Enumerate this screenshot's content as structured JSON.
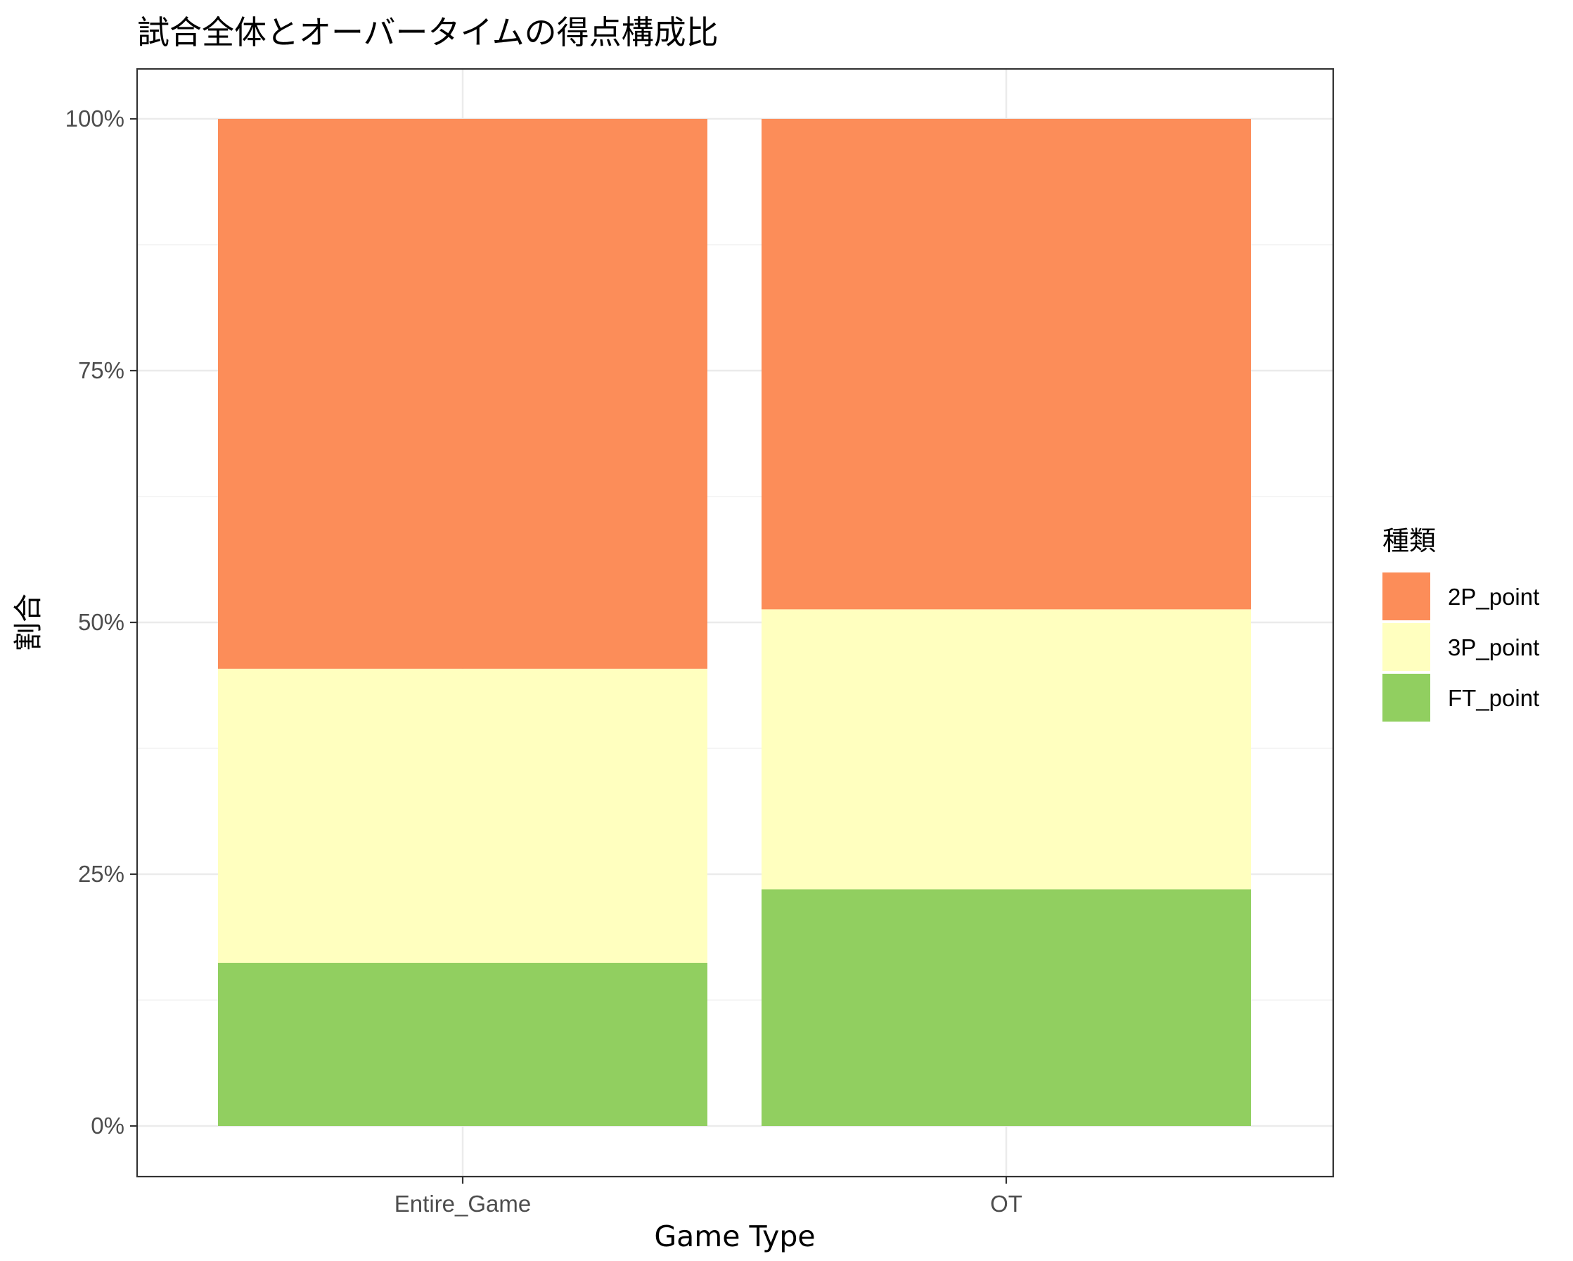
{
  "chart_data": {
    "type": "bar",
    "stacked": true,
    "position": "fill",
    "title": "試合全体とオーバータイムの得点構成比",
    "xlabel": "Game Type",
    "ylabel": "割合",
    "categories": [
      "Entire_Game",
      "OT"
    ],
    "ylim": [
      0,
      1
    ],
    "yticks": [
      {
        "value": 0,
        "label": "0%"
      },
      {
        "value": 0.25,
        "label": "25%"
      },
      {
        "value": 0.5,
        "label": "50%"
      },
      {
        "value": 0.75,
        "label": "75%"
      },
      {
        "value": 1.0,
        "label": "100%"
      }
    ],
    "grid": true,
    "legend": {
      "title": "種類",
      "placement": "right"
    },
    "series": [
      {
        "name": "FT_point",
        "color": "#91CF60",
        "values": [
          0.162,
          0.235
        ]
      },
      {
        "name": "3P_point",
        "color": "#FFFFBF",
        "values": [
          0.292,
          0.278
        ]
      },
      {
        "name": "2P_point",
        "color": "#FC8D59",
        "values": [
          0.546,
          0.487
        ]
      }
    ],
    "legend_order": [
      "2P_point",
      "3P_point",
      "FT_point"
    ]
  }
}
